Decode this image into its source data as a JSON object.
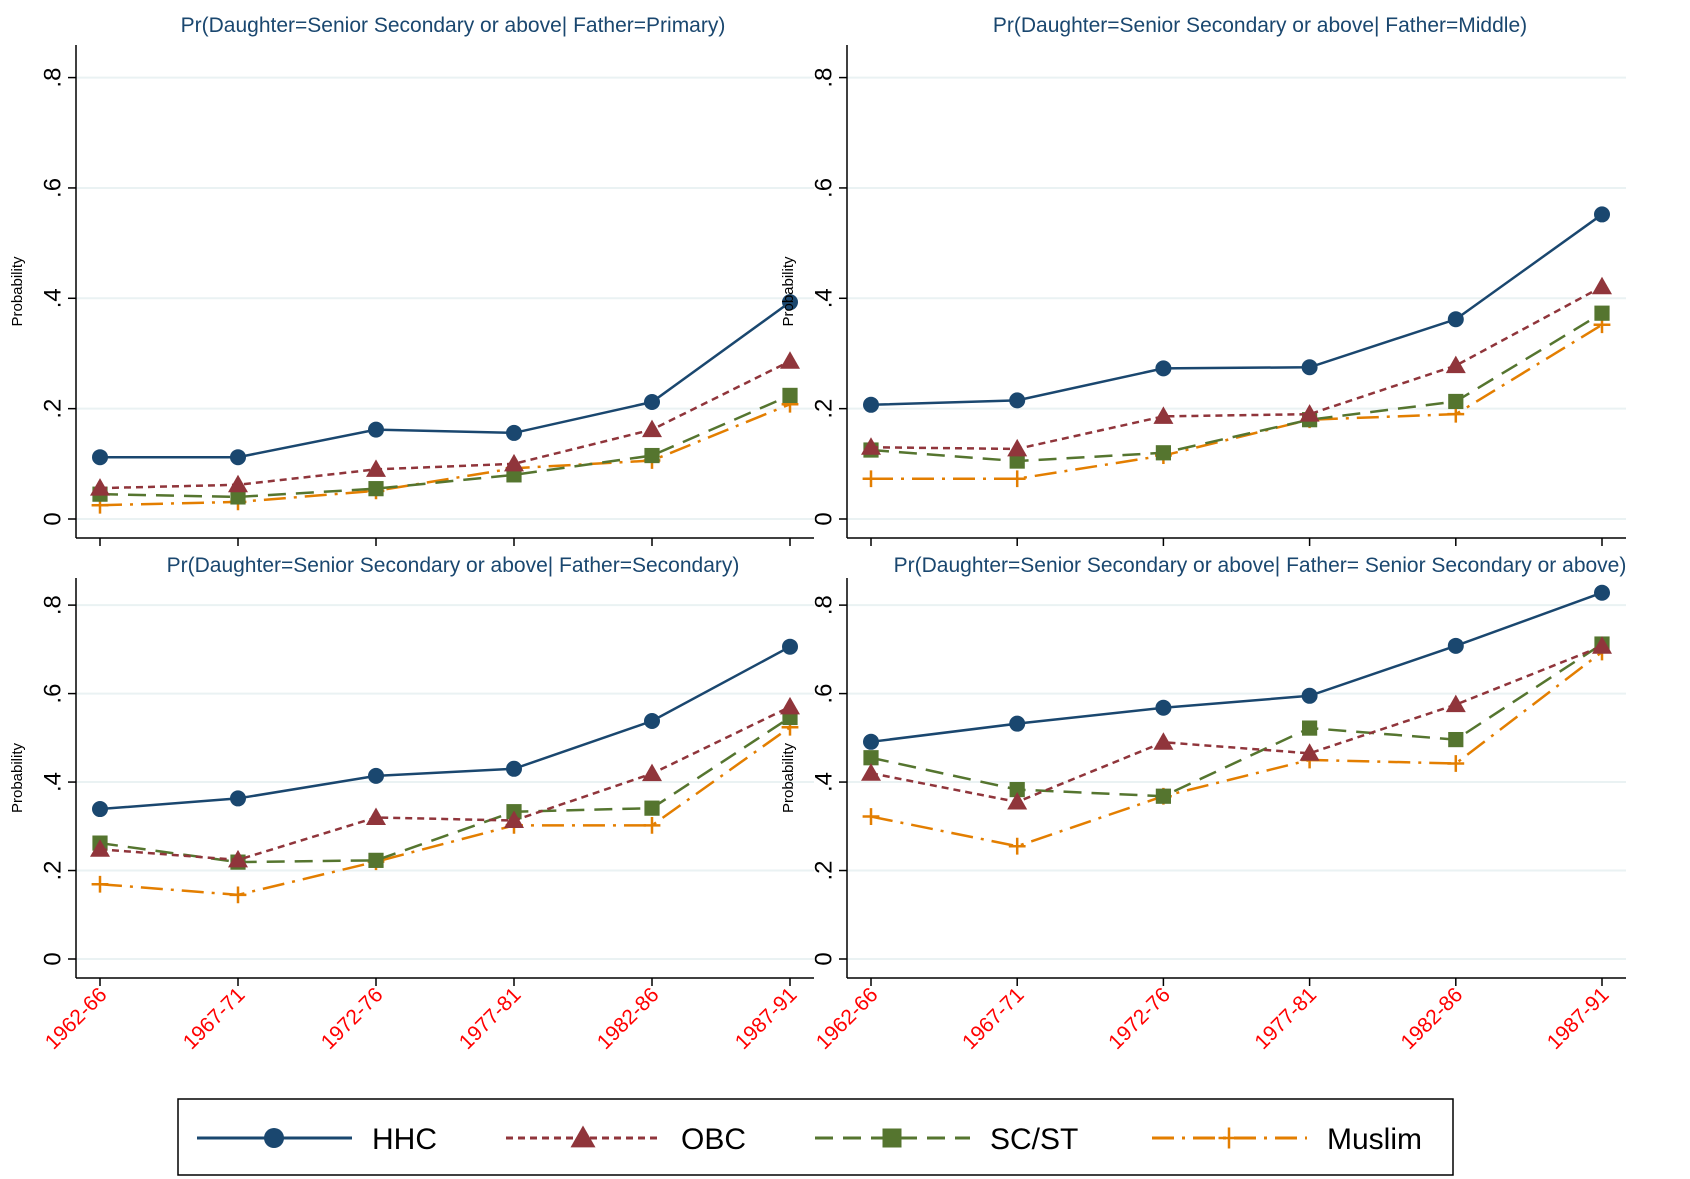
{
  "colors": {
    "HHC": "#1a476f",
    "OBC": "#90353b",
    "SC/ST": "#55752f",
    "Muslim": "#e37e00",
    "title": "#1a476f",
    "xtick": "#ff0000",
    "grid": "#eaf2f3"
  },
  "legend": [
    {
      "name": "HHC",
      "marker": "circle",
      "dash": "solid"
    },
    {
      "name": "OBC",
      "marker": "triangle",
      "dash": "short-dash"
    },
    {
      "name": "SC/ST",
      "marker": "square",
      "dash": "long-dash"
    },
    {
      "name": "Muslim",
      "marker": "plus",
      "dash": "dash-dot"
    }
  ],
  "chart_data": [
    {
      "type": "line",
      "title": "Pr(Daughter=Senior Secondary or above| Father=Primary)",
      "ylabel": "Probability",
      "xlabel": "",
      "categories": [
        "1962-66",
        "1967-71",
        "1972-76",
        "1977-81",
        "1982-86",
        "1987-91"
      ],
      "yticks": [
        "0",
        ".2",
        ".4",
        ".6",
        ".8"
      ],
      "ylim": [
        0,
        0.85
      ],
      "grid": true,
      "series": [
        {
          "name": "HHC",
          "values": [
            0.112,
            0.112,
            0.162,
            0.156,
            0.212,
            0.393
          ]
        },
        {
          "name": "OBC",
          "values": [
            0.056,
            0.062,
            0.09,
            0.1,
            0.162,
            0.286
          ]
        },
        {
          "name": "SC/ST",
          "values": [
            0.045,
            0.04,
            0.055,
            0.08,
            0.115,
            0.224
          ]
        },
        {
          "name": "Muslim",
          "values": [
            0.025,
            0.031,
            0.051,
            0.092,
            0.106,
            0.208
          ]
        }
      ]
    },
    {
      "type": "line",
      "title": "Pr(Daughter=Senior Secondary or above| Father=Middle)",
      "ylabel": "Probability",
      "xlabel": "",
      "categories": [
        "1962-66",
        "1967-71",
        "1972-76",
        "1977-81",
        "1982-86",
        "1987-91"
      ],
      "yticks": [
        "0",
        ".2",
        ".4",
        ".6",
        ".8"
      ],
      "ylim": [
        0,
        0.85
      ],
      "grid": true,
      "series": [
        {
          "name": "HHC",
          "values": [
            0.207,
            0.215,
            0.273,
            0.275,
            0.362,
            0.552
          ]
        },
        {
          "name": "OBC",
          "values": [
            0.13,
            0.127,
            0.186,
            0.19,
            0.278,
            0.421
          ]
        },
        {
          "name": "SC/ST",
          "values": [
            0.125,
            0.105,
            0.12,
            0.18,
            0.213,
            0.373
          ]
        },
        {
          "name": "Muslim",
          "values": [
            0.073,
            0.073,
            0.115,
            0.18,
            0.19,
            0.352
          ]
        }
      ]
    },
    {
      "type": "line",
      "title": "Pr(Daughter=Senior Secondary or above| Father=Secondary)",
      "ylabel": "Probability",
      "xlabel": "",
      "categories": [
        "1962-66",
        "1967-71",
        "1972-76",
        "1977-81",
        "1982-86",
        "1987-91"
      ],
      "yticks": [
        "0",
        ".2",
        ".4",
        ".6",
        ".8"
      ],
      "ylim": [
        0,
        0.85
      ],
      "grid": true,
      "series": [
        {
          "name": "HHC",
          "values": [
            0.339,
            0.363,
            0.414,
            0.43,
            0.538,
            0.706
          ]
        },
        {
          "name": "OBC",
          "values": [
            0.248,
            0.224,
            0.32,
            0.313,
            0.419,
            0.57
          ]
        },
        {
          "name": "SC/ST",
          "values": [
            0.262,
            0.219,
            0.223,
            0.333,
            0.341,
            0.546
          ]
        },
        {
          "name": "Muslim",
          "values": [
            0.169,
            0.145,
            0.22,
            0.302,
            0.302,
            0.524
          ]
        }
      ]
    },
    {
      "type": "line",
      "title": "Pr(Daughter=Senior Secondary or above| Father= Senior Secondary or above)",
      "ylabel": "Probability",
      "xlabel": "",
      "categories": [
        "1962-66",
        "1967-71",
        "1972-76",
        "1977-81",
        "1982-86",
        "1987-91"
      ],
      "yticks": [
        "0",
        ".2",
        ".4",
        ".6",
        ".8"
      ],
      "ylim": [
        0,
        0.85
      ],
      "grid": true,
      "series": [
        {
          "name": "HHC",
          "values": [
            0.491,
            0.532,
            0.568,
            0.595,
            0.708,
            0.828
          ]
        },
        {
          "name": "OBC",
          "values": [
            0.42,
            0.355,
            0.49,
            0.465,
            0.575,
            0.707
          ]
        },
        {
          "name": "SC/ST",
          "values": [
            0.455,
            0.383,
            0.368,
            0.522,
            0.496,
            0.712
          ]
        },
        {
          "name": "Muslim",
          "values": [
            0.322,
            0.255,
            0.368,
            0.45,
            0.442,
            0.694
          ]
        }
      ]
    }
  ]
}
